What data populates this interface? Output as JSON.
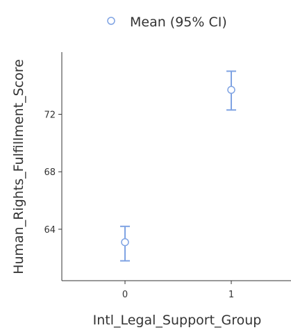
{
  "chart_data": {
    "type": "scatter",
    "title": "",
    "xlabel": "Intl_Legal_Support_Group",
    "ylabel": "Human_Rights_Fulfillment_Score",
    "categories": [
      "0",
      "1"
    ],
    "series": [
      {
        "name": "Mean (95% CI)",
        "points": [
          {
            "x": "0",
            "mean": 63.1,
            "ci_low": 61.8,
            "ci_high": 64.2
          },
          {
            "x": "1",
            "mean": 73.7,
            "ci_low": 72.3,
            "ci_high": 75.0
          }
        ]
      }
    ],
    "y_ticks": [
      64,
      68,
      72
    ],
    "ylim": [
      61.0,
      75.7
    ],
    "grid": false,
    "legend_position": "top",
    "color": "#7fa3e3"
  }
}
